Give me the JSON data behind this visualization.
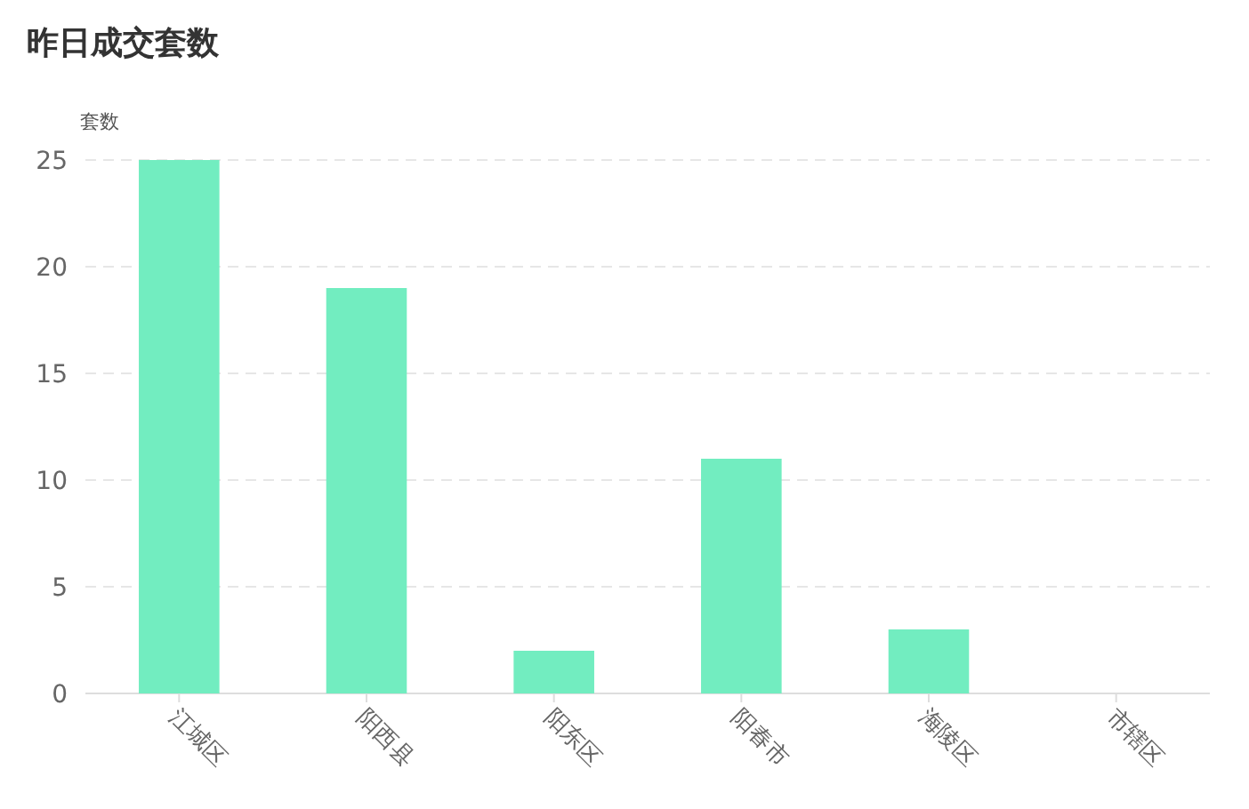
{
  "chart_data": {
    "type": "bar",
    "title": "昨日成交套数",
    "ylabel": "套数",
    "categories": [
      "江城区",
      "阳西县",
      "阳东区",
      "阳春市",
      "海陵区",
      "市辖区"
    ],
    "values": [
      25,
      19,
      2,
      11,
      3,
      0
    ],
    "color": "#72edc0",
    "ylim": [
      0,
      25
    ],
    "yticks": [
      0,
      5,
      10,
      15,
      20,
      25
    ],
    "grid": "y"
  }
}
